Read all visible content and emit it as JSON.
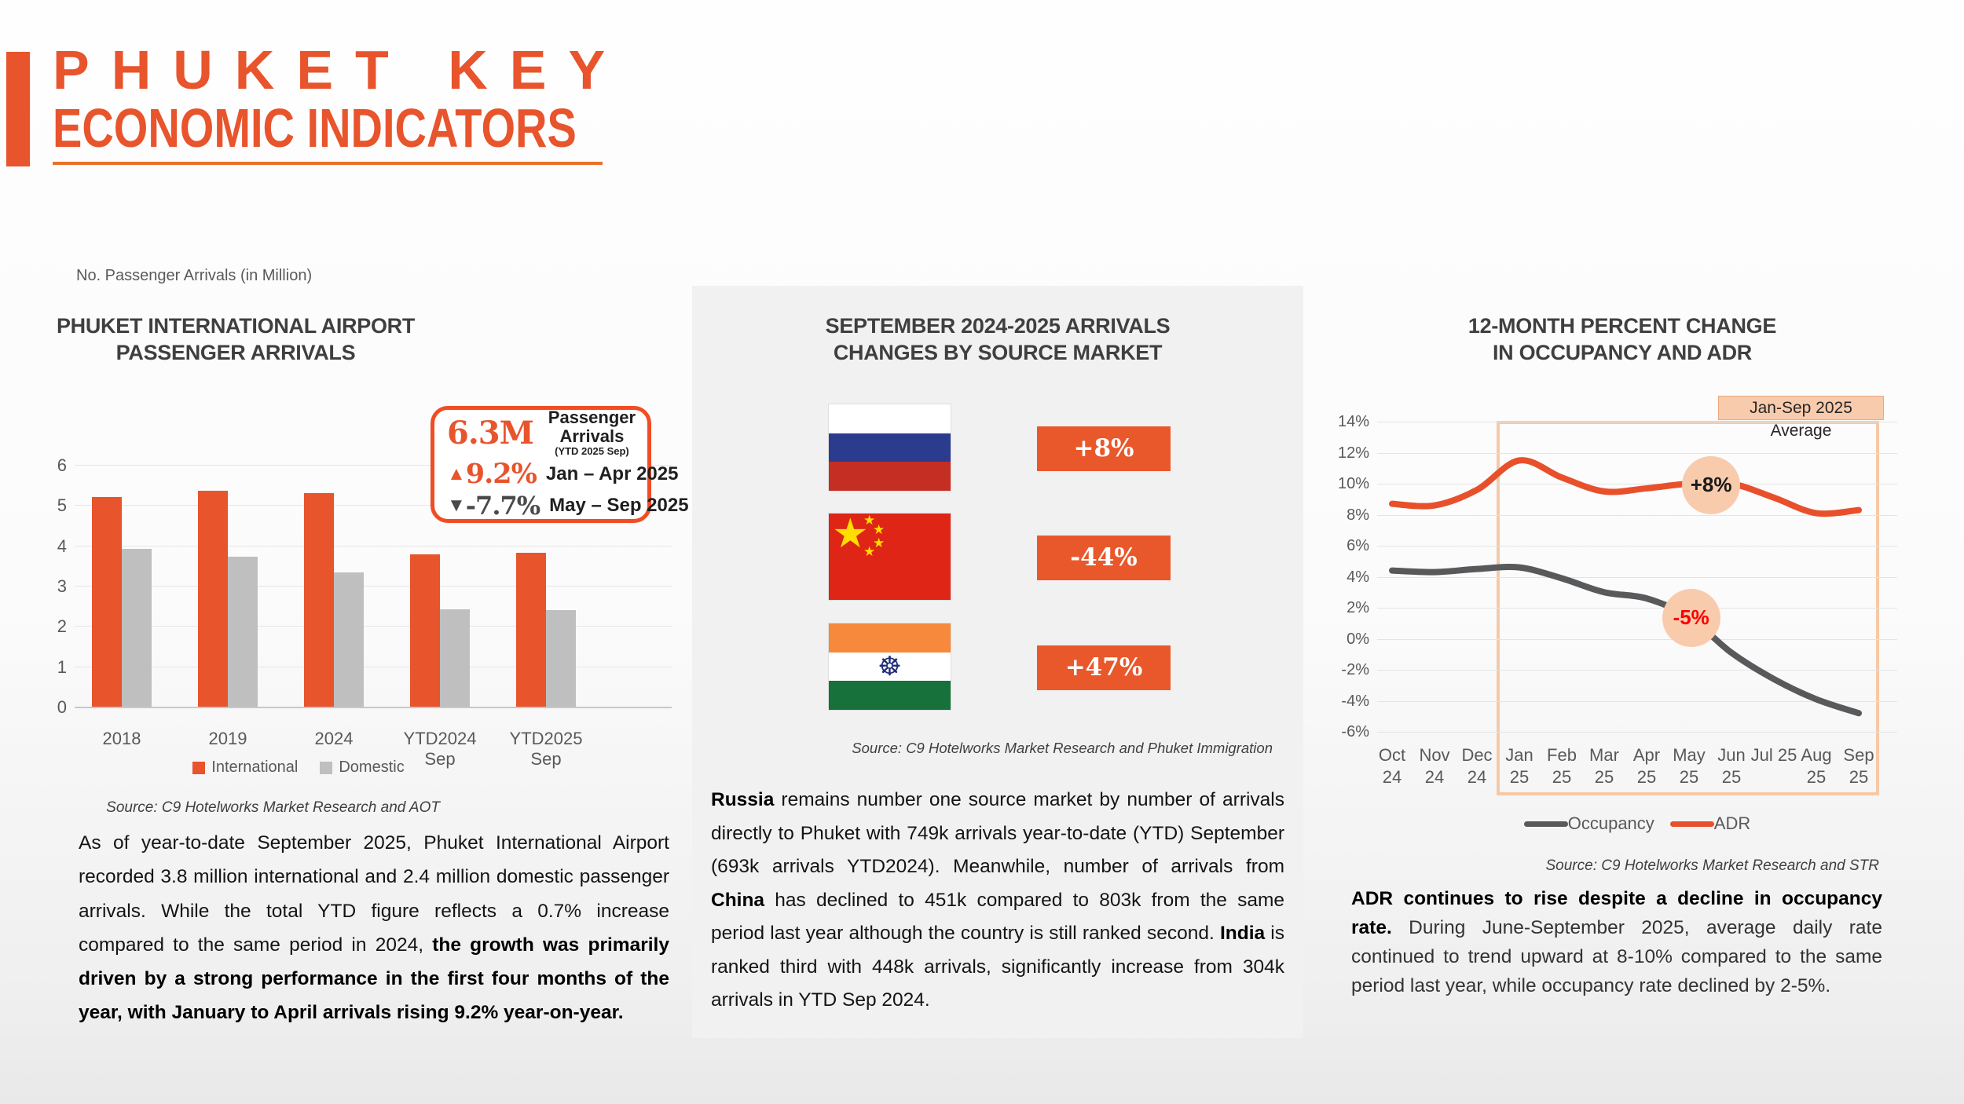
{
  "header": {
    "title_line1": "PHUKET KEY",
    "title_line2": "ECONOMIC INDICATORS"
  },
  "colors": {
    "accent_orange": "#E8542C",
    "adr_line": "#E8502B",
    "occupancy_line": "#58595B",
    "domestic_gray": "#BFBFBF",
    "peach_highlight": "#F8CBAD",
    "panel_background": "#F1F1F1",
    "negative_red": "#FF0000"
  },
  "left_panel": {
    "title_line1": "PHUKET INTERNATIONAL AIRPORT",
    "title_line2": "PASSENGER ARRIVALS",
    "callout": {
      "value": "6.3M",
      "value_label": "Passenger Arrivals",
      "value_sublabel": "(YTD 2025 Sep)",
      "up_icon": "▲",
      "up_value": "9.2%",
      "up_label": "Jan – Apr 2025",
      "down_icon": "▼",
      "down_value": "-7.7%",
      "down_label": "May – Sep 2025"
    },
    "chart_data": {
      "type": "bar",
      "title": "Phuket International Airport Passenger Arrivals",
      "ylabel": "No. Passenger Arrivals (in Million)",
      "categories": [
        "2018",
        "2019",
        "2024",
        "YTD2024 Sep",
        "YTD2025 Sep"
      ],
      "series": [
        {
          "name": "International",
          "color": "#E8542C",
          "values": [
            5.2,
            5.35,
            5.3,
            3.77,
            3.82
          ]
        },
        {
          "name": "Domestic",
          "color": "#BFBFBF",
          "values": [
            3.92,
            3.72,
            3.33,
            2.42,
            2.4
          ]
        }
      ],
      "ylim": [
        0,
        6
      ],
      "yticks": [
        6,
        5,
        4,
        3,
        2,
        1,
        0
      ],
      "grid": true,
      "legend_position": "bottom"
    },
    "source": "Source: C9 Hotelworks Market Research and AOT",
    "paragraph": [
      {
        "text": "As of year-to-date September 2025, Phuket International Airport recorded 3.8 million international and 2.4 million domestic passenger arrivals. While the total YTD figure reflects a 0.7% increase compared to the same period in 2024, ",
        "bold": false
      },
      {
        "text": "the growth was primarily driven by a strong performance in the first four months of the year, with January to April arrivals rising 9.2% year-on-year.",
        "bold": true
      }
    ]
  },
  "middle_panel": {
    "title_line1": "SEPTEMBER 2024-2025 ARRIVALS",
    "title_line2": "CHANGES BY SOURCE MARKET",
    "markets": [
      {
        "country": "Russia",
        "change": "+8%"
      },
      {
        "country": "China",
        "change": "-44%"
      },
      {
        "country": "India",
        "change": "+47%"
      }
    ],
    "source": "Source: C9 Hotelworks Market Research and Phuket Immigration",
    "paragraph": [
      {
        "text": "Russia",
        "bold": true
      },
      {
        "text": " remains number one source market by number of arrivals directly to Phuket with 749k arrivals year-to-date (YTD) September (693k arrivals YTD2024). Meanwhile, number of arrivals from ",
        "bold": false
      },
      {
        "text": "China",
        "bold": true
      },
      {
        "text": " has declined to 451k compared to 803k from the same period last year although the country is still ranked second. ",
        "bold": false
      },
      {
        "text": "India",
        "bold": true
      },
      {
        "text": " is ranked third with 448k arrivals, significantly increase from 304k arrivals in YTD Sep 2024.",
        "bold": false
      }
    ]
  },
  "right_panel": {
    "title_line1": "12-MONTH PERCENT CHANGE",
    "title_line2": "IN OCCUPANCY AND ADR",
    "chart_data": {
      "type": "line",
      "x_labels_line1": [
        "Oct",
        "Nov",
        "Dec",
        "Jan",
        "Feb",
        "Mar",
        "Apr",
        "May",
        "Jun",
        "Jul 25",
        "Aug",
        "Sep"
      ],
      "x_labels_line2": [
        "24",
        "24",
        "24",
        "25",
        "25",
        "25",
        "25",
        "25",
        "25",
        "",
        "25",
        "25"
      ],
      "series": [
        {
          "name": "Occupancy",
          "color": "#58595B",
          "values": [
            4.4,
            4.3,
            4.5,
            4.6,
            3.9,
            3.0,
            2.6,
            1.4,
            -0.9,
            -2.6,
            -3.9,
            -4.8
          ]
        },
        {
          "name": "ADR",
          "color": "#E8502B",
          "values": [
            8.7,
            8.6,
            9.6,
            11.5,
            10.4,
            9.5,
            9.7,
            10.0,
            10.0,
            9.1,
            8.1,
            8.3
          ]
        }
      ],
      "ylim": [
        -6,
        14
      ],
      "ytick_labels": [
        "14%",
        "12%",
        "10%",
        "8%",
        "6%",
        "4%",
        "2%",
        "0%",
        "-2%",
        "-4%",
        "-6%"
      ],
      "grid": true,
      "legend_position": "bottom",
      "annotations": [
        {
          "text": "+8%",
          "series": "ADR",
          "x_index": 7.52,
          "value": 9.9,
          "text_color": "#1A1A1A"
        },
        {
          "text": "-5%",
          "series": "Occupancy",
          "x_index": 7.05,
          "value": 1.35,
          "text_color": "#FF0000"
        }
      ],
      "highlight_range": {
        "from": "Jan 25",
        "to": "Sep 25",
        "label": "Jan-Sep 2025 Average"
      }
    },
    "source": "Source: C9 Hotelworks Market Research and STR",
    "paragraph": [
      {
        "text": "ADR continues to rise despite a decline in occupancy rate.",
        "bold": true
      },
      {
        "text": " During June-September 2025, average daily rate continued to trend upward at 8-10% compared to the same period last year, while occupancy rate declined by 2-5%.",
        "bold": false
      }
    ]
  }
}
